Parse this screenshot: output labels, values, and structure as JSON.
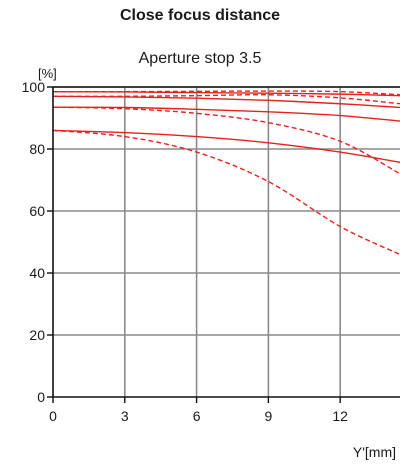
{
  "chart_data": {
    "type": "line",
    "title": "Close focus distance",
    "subtitle": "Aperture stop 3.5",
    "ylabel": "[%]",
    "xlabel": "Y'[mm]",
    "xlim": [
      0,
      14.5
    ],
    "ylim": [
      0,
      100
    ],
    "xticks": [
      0,
      3,
      6,
      9,
      12
    ],
    "yticks": [
      0,
      20,
      40,
      60,
      80,
      100
    ],
    "grid": true,
    "line_color": "#e8211c",
    "series": [
      {
        "style": "solid",
        "x": [
          0,
          3,
          6,
          9,
          12,
          14.5
        ],
        "y": [
          98.5,
          98.4,
          98.2,
          98.0,
          97.7,
          97.2
        ]
      },
      {
        "style": "dashed",
        "x": [
          0,
          3,
          6,
          9,
          12,
          14.5
        ],
        "y": [
          98.5,
          98.5,
          98.6,
          98.7,
          98.5,
          97.5
        ]
      },
      {
        "style": "solid",
        "x": [
          0,
          3,
          6,
          9,
          12,
          14.5
        ],
        "y": [
          97.0,
          96.8,
          96.4,
          95.7,
          94.6,
          93.4
        ]
      },
      {
        "style": "dashed",
        "x": [
          0,
          3,
          6,
          9,
          12,
          14.5
        ],
        "y": [
          97.0,
          97.0,
          97.2,
          97.5,
          96.5,
          94.6
        ]
      },
      {
        "style": "solid",
        "x": [
          0,
          3,
          6,
          9,
          12,
          14.5
        ],
        "y": [
          93.5,
          93.4,
          92.8,
          92.0,
          90.8,
          89.0
        ]
      },
      {
        "style": "dashed",
        "x": [
          0,
          3,
          6,
          9,
          12,
          14.5
        ],
        "y": [
          93.5,
          93.0,
          91.5,
          88.5,
          82.5,
          72.0
        ]
      },
      {
        "style": "solid",
        "x": [
          0,
          3,
          6,
          9,
          12,
          14.5
        ],
        "y": [
          86.0,
          85.3,
          84.0,
          82.0,
          79.0,
          75.7
        ]
      },
      {
        "style": "dashed",
        "x": [
          0,
          3,
          6,
          9,
          12,
          14.5
        ],
        "y": [
          86.0,
          84.0,
          79.0,
          69.5,
          55.0,
          46.0
        ]
      }
    ]
  }
}
